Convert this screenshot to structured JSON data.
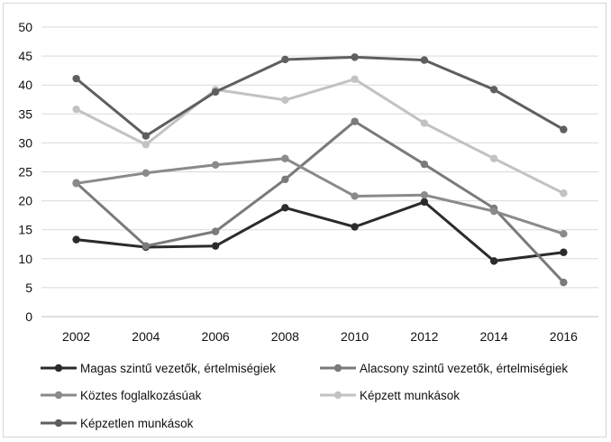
{
  "chart_data": {
    "type": "line",
    "title": "",
    "xlabel": "",
    "ylabel": "",
    "x": [
      2002,
      2004,
      2006,
      2008,
      2010,
      2012,
      2014,
      2016
    ],
    "x_labels": [
      "2002",
      "2004",
      "2006",
      "2008",
      "2010",
      "2012",
      "2014",
      "2016"
    ],
    "ylim": [
      0,
      50
    ],
    "y_ticks": [
      0,
      5,
      10,
      15,
      20,
      25,
      30,
      35,
      40,
      45,
      50
    ],
    "y_tick_labels": [
      "0",
      "5",
      "10",
      "15",
      "20",
      "25",
      "30",
      "35",
      "40",
      "45",
      "50"
    ],
    "grid": "horizontal",
    "legend_position": "bottom",
    "series": [
      {
        "name": "Magas szintű vezetők, értelmiségiek",
        "color": "#2b2b2b",
        "values": [
          13.3,
          12.0,
          12.2,
          18.8,
          15.5,
          19.8,
          9.6,
          11.1
        ]
      },
      {
        "name": "Alacsony szintű vezetők, értelmiségiek",
        "color": "#7a7a7a",
        "values": [
          23.1,
          12.2,
          14.7,
          23.7,
          33.7,
          26.3,
          18.7,
          5.9
        ]
      },
      {
        "name": "Köztes foglalkozásúak",
        "color": "#8a8a8a",
        "values": [
          23.0,
          24.8,
          26.2,
          27.3,
          20.8,
          21.0,
          18.2,
          14.3
        ]
      },
      {
        "name": "Képzett munkások",
        "color": "#c2c2c2",
        "values": [
          35.8,
          29.7,
          39.2,
          37.4,
          41.0,
          33.4,
          27.3,
          21.3
        ]
      },
      {
        "name": "Képzetlen munkások",
        "color": "#5f5f5f",
        "values": [
          41.1,
          31.2,
          38.8,
          44.4,
          44.8,
          44.3,
          39.2,
          32.3
        ]
      }
    ]
  }
}
